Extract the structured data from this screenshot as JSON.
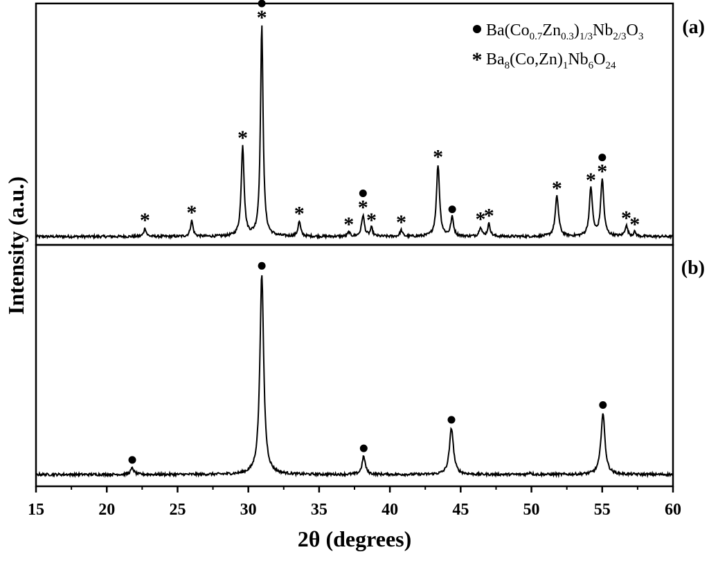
{
  "chart_data": {
    "type": "line",
    "xlabel": "2θ (degrees)",
    "ylabel": "Intensity (a.u.)",
    "xlim": [
      15,
      60
    ],
    "xticks": [
      15,
      20,
      25,
      30,
      35,
      40,
      45,
      50,
      55,
      60
    ],
    "grid": false,
    "legend_position": "top-right",
    "marker_legend": [
      {
        "symbol": "circle",
        "parts": [
          {
            "t": "Ba(Co"
          },
          {
            "t": "0.7",
            "sub": true
          },
          {
            "t": "Zn"
          },
          {
            "t": "0.3",
            "sub": true
          },
          {
            "t": ")"
          },
          {
            "t": "1/3",
            "sub": true
          },
          {
            "t": "Nb"
          },
          {
            "t": "2/3",
            "sub": true
          },
          {
            "t": "O"
          },
          {
            "t": "3",
            "sub": true
          }
        ]
      },
      {
        "symbol": "star",
        "parts": [
          {
            "t": "Ba"
          },
          {
            "t": "8",
            "sub": true
          },
          {
            "t": "(Co,Zn)"
          },
          {
            "t": "1",
            "sub": true
          },
          {
            "t": "Nb"
          },
          {
            "t": "6",
            "sub": true
          },
          {
            "t": "O"
          },
          {
            "t": "24",
            "sub": true
          }
        ]
      }
    ],
    "panels": [
      {
        "label": "(a)",
        "baseline": 0.03,
        "peaks": [
          {
            "x": 22.7,
            "h": 0.04,
            "w": 0.1,
            "marker": "star"
          },
          {
            "x": 26.0,
            "h": 0.075,
            "w": 0.11,
            "marker": "star"
          },
          {
            "x": 29.6,
            "h": 0.43,
            "w": 0.12,
            "marker": "star"
          },
          {
            "x": 30.95,
            "h": 1.0,
            "w": 0.11,
            "marker": "both"
          },
          {
            "x": 33.6,
            "h": 0.07,
            "w": 0.11,
            "marker": "star"
          },
          {
            "x": 37.1,
            "h": 0.02,
            "w": 0.1,
            "marker": "star"
          },
          {
            "x": 38.1,
            "h": 0.1,
            "w": 0.12,
            "marker": "both"
          },
          {
            "x": 38.7,
            "h": 0.04,
            "w": 0.1,
            "marker": "star"
          },
          {
            "x": 40.8,
            "h": 0.03,
            "w": 0.1,
            "marker": "star"
          },
          {
            "x": 43.4,
            "h": 0.34,
            "w": 0.13,
            "marker": "star"
          },
          {
            "x": 44.4,
            "h": 0.09,
            "w": 0.12,
            "marker": "circle"
          },
          {
            "x": 46.4,
            "h": 0.045,
            "w": 0.11,
            "marker": "star"
          },
          {
            "x": 47.0,
            "h": 0.06,
            "w": 0.11,
            "marker": "star"
          },
          {
            "x": 51.8,
            "h": 0.19,
            "w": 0.14,
            "marker": "star"
          },
          {
            "x": 54.2,
            "h": 0.23,
            "w": 0.13,
            "marker": "star"
          },
          {
            "x": 55.0,
            "h": 0.27,
            "w": 0.13,
            "marker": "both"
          },
          {
            "x": 56.7,
            "h": 0.05,
            "w": 0.12,
            "marker": "star"
          },
          {
            "x": 57.3,
            "h": 0.02,
            "w": 0.1,
            "marker": "star"
          }
        ]
      },
      {
        "label": "(b)",
        "baseline": 0.03,
        "peaks": [
          {
            "x": 21.8,
            "h": 0.03,
            "w": 0.14,
            "marker": "circle"
          },
          {
            "x": 30.95,
            "h": 0.95,
            "w": 0.16,
            "marker": "circle"
          },
          {
            "x": 38.15,
            "h": 0.085,
            "w": 0.14,
            "marker": "circle"
          },
          {
            "x": 44.35,
            "h": 0.22,
            "w": 0.17,
            "marker": "circle"
          },
          {
            "x": 49.9,
            "h": 0.01,
            "w": 0.12,
            "marker": "none"
          },
          {
            "x": 55.05,
            "h": 0.29,
            "w": 0.17,
            "marker": "circle"
          }
        ]
      }
    ]
  }
}
